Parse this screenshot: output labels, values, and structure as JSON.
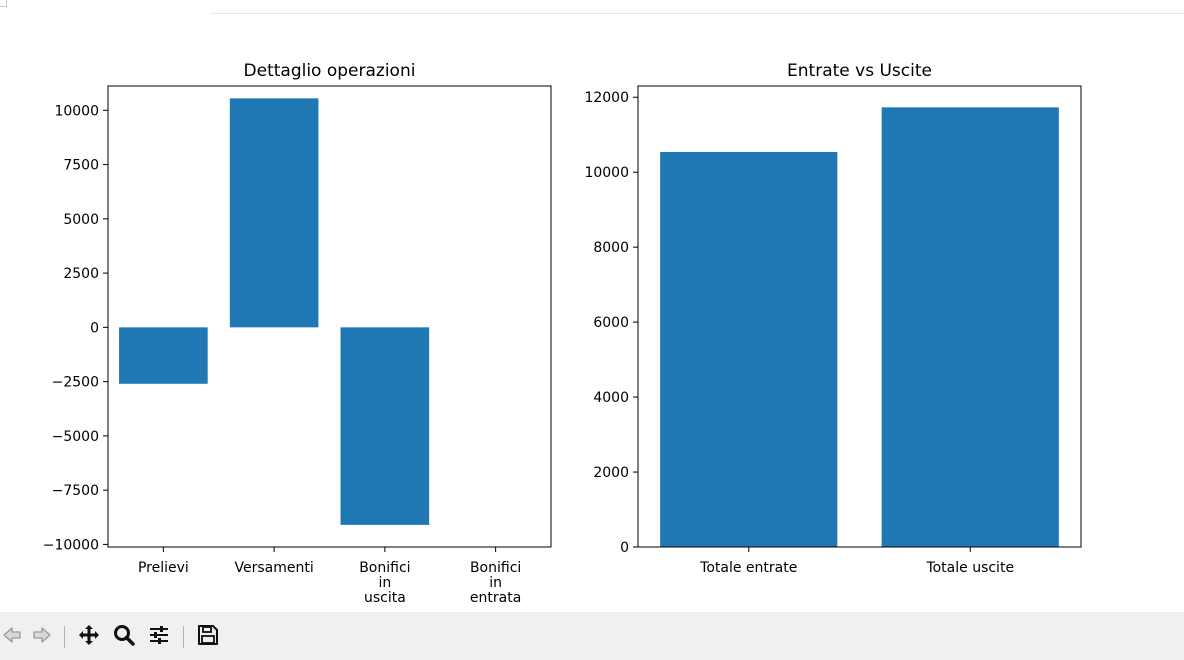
{
  "chart_data": [
    {
      "type": "bar",
      "title": "Dettaglio operazioni",
      "categories": [
        [
          "Prelievi"
        ],
        [
          "Versamenti"
        ],
        [
          "Bonifici",
          "in",
          "uscita"
        ],
        [
          "Bonifici",
          "in",
          "entrata"
        ]
      ],
      "values": [
        -2600,
        10550,
        -9100,
        0
      ],
      "yticks": [
        -10000,
        -7500,
        -5000,
        -2500,
        0,
        2500,
        5000,
        7500,
        10000
      ],
      "ylim": [
        -10120,
        11120
      ],
      "color": "#1f77b4"
    },
    {
      "type": "bar",
      "title": "Entrate vs Uscite",
      "categories": [
        [
          "Totale entrate"
        ],
        [
          "Totale uscite"
        ]
      ],
      "values": [
        10540,
        11730
      ],
      "yticks": [
        0,
        2000,
        4000,
        6000,
        8000,
        10000,
        12000
      ],
      "ylim": [
        0,
        12300
      ],
      "color": "#1f77b4"
    }
  ],
  "toolbar": {
    "buttons": [
      "back-icon",
      "forward-icon",
      "pan-icon",
      "zoom-icon",
      "configure-subplots-icon",
      "save-icon"
    ]
  }
}
